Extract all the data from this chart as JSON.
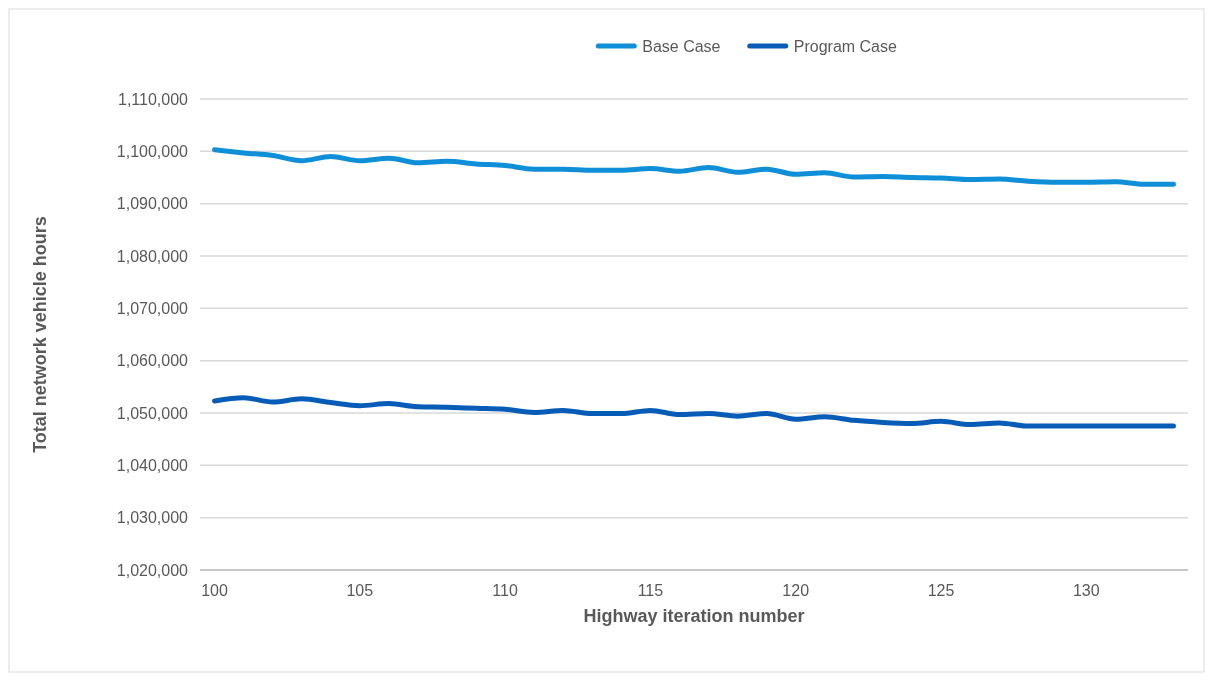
{
  "chart_data": {
    "type": "line",
    "xlabel": "Highway iteration number",
    "ylabel": "Total network vehicle hours",
    "categories": [
      "100",
      null,
      null,
      null,
      null,
      "105",
      null,
      null,
      null,
      null,
      "110",
      null,
      null,
      null,
      null,
      "115",
      null,
      null,
      null,
      null,
      "120",
      null,
      null,
      null,
      null,
      "125",
      null,
      null,
      null,
      null,
      "130",
      null,
      null,
      null
    ],
    "series": [
      {
        "name": "Base Case",
        "color": "#0f8fd8",
        "values": [
          1100300,
          1099700,
          1099200,
          1098200,
          1099000,
          1098200,
          1098700,
          1097800,
          1098100,
          1097600,
          1097300,
          1096600,
          1096600,
          1096400,
          1096400,
          1096700,
          1096200,
          1096900,
          1096000,
          1096600,
          1095600,
          1095900,
          1095100,
          1095200,
          1095000,
          1094900,
          1094600,
          1094700,
          1094300,
          1094100,
          1094100,
          1094200,
          1093700,
          1093700
        ]
      },
      {
        "name": "Program Case",
        "color": "#075cb8",
        "values": [
          1052300,
          1052900,
          1052100,
          1052700,
          1052000,
          1051400,
          1051800,
          1051200,
          1051100,
          1050900,
          1050700,
          1050100,
          1050500,
          1049900,
          1049900,
          1050500,
          1049700,
          1049900,
          1049400,
          1049900,
          1048800,
          1049300,
          1048600,
          1048200,
          1048000,
          1048400,
          1047800,
          1048100,
          1047500,
          1047500,
          1047500,
          1047500,
          1047500,
          1047500
        ]
      }
    ],
    "ylim": [
      1020000,
      1110000
    ],
    "yticks": [
      {
        "value": 1020000,
        "label": "1,020,000"
      },
      {
        "value": 1030000,
        "label": "1,030,000"
      },
      {
        "value": 1040000,
        "label": "1,040,000"
      },
      {
        "value": 1050000,
        "label": "1,050,000"
      },
      {
        "value": 1060000,
        "label": "1,060,000"
      },
      {
        "value": 1070000,
        "label": "1,070,000"
      },
      {
        "value": 1080000,
        "label": "1,080,000"
      },
      {
        "value": 1090000,
        "label": "1,090,000"
      },
      {
        "value": 1100000,
        "label": "1,100,000"
      },
      {
        "value": 1110000,
        "label": "1,110,000"
      }
    ],
    "grid": "y",
    "legend": "top",
    "marker": "none",
    "line_style": "solid"
  }
}
